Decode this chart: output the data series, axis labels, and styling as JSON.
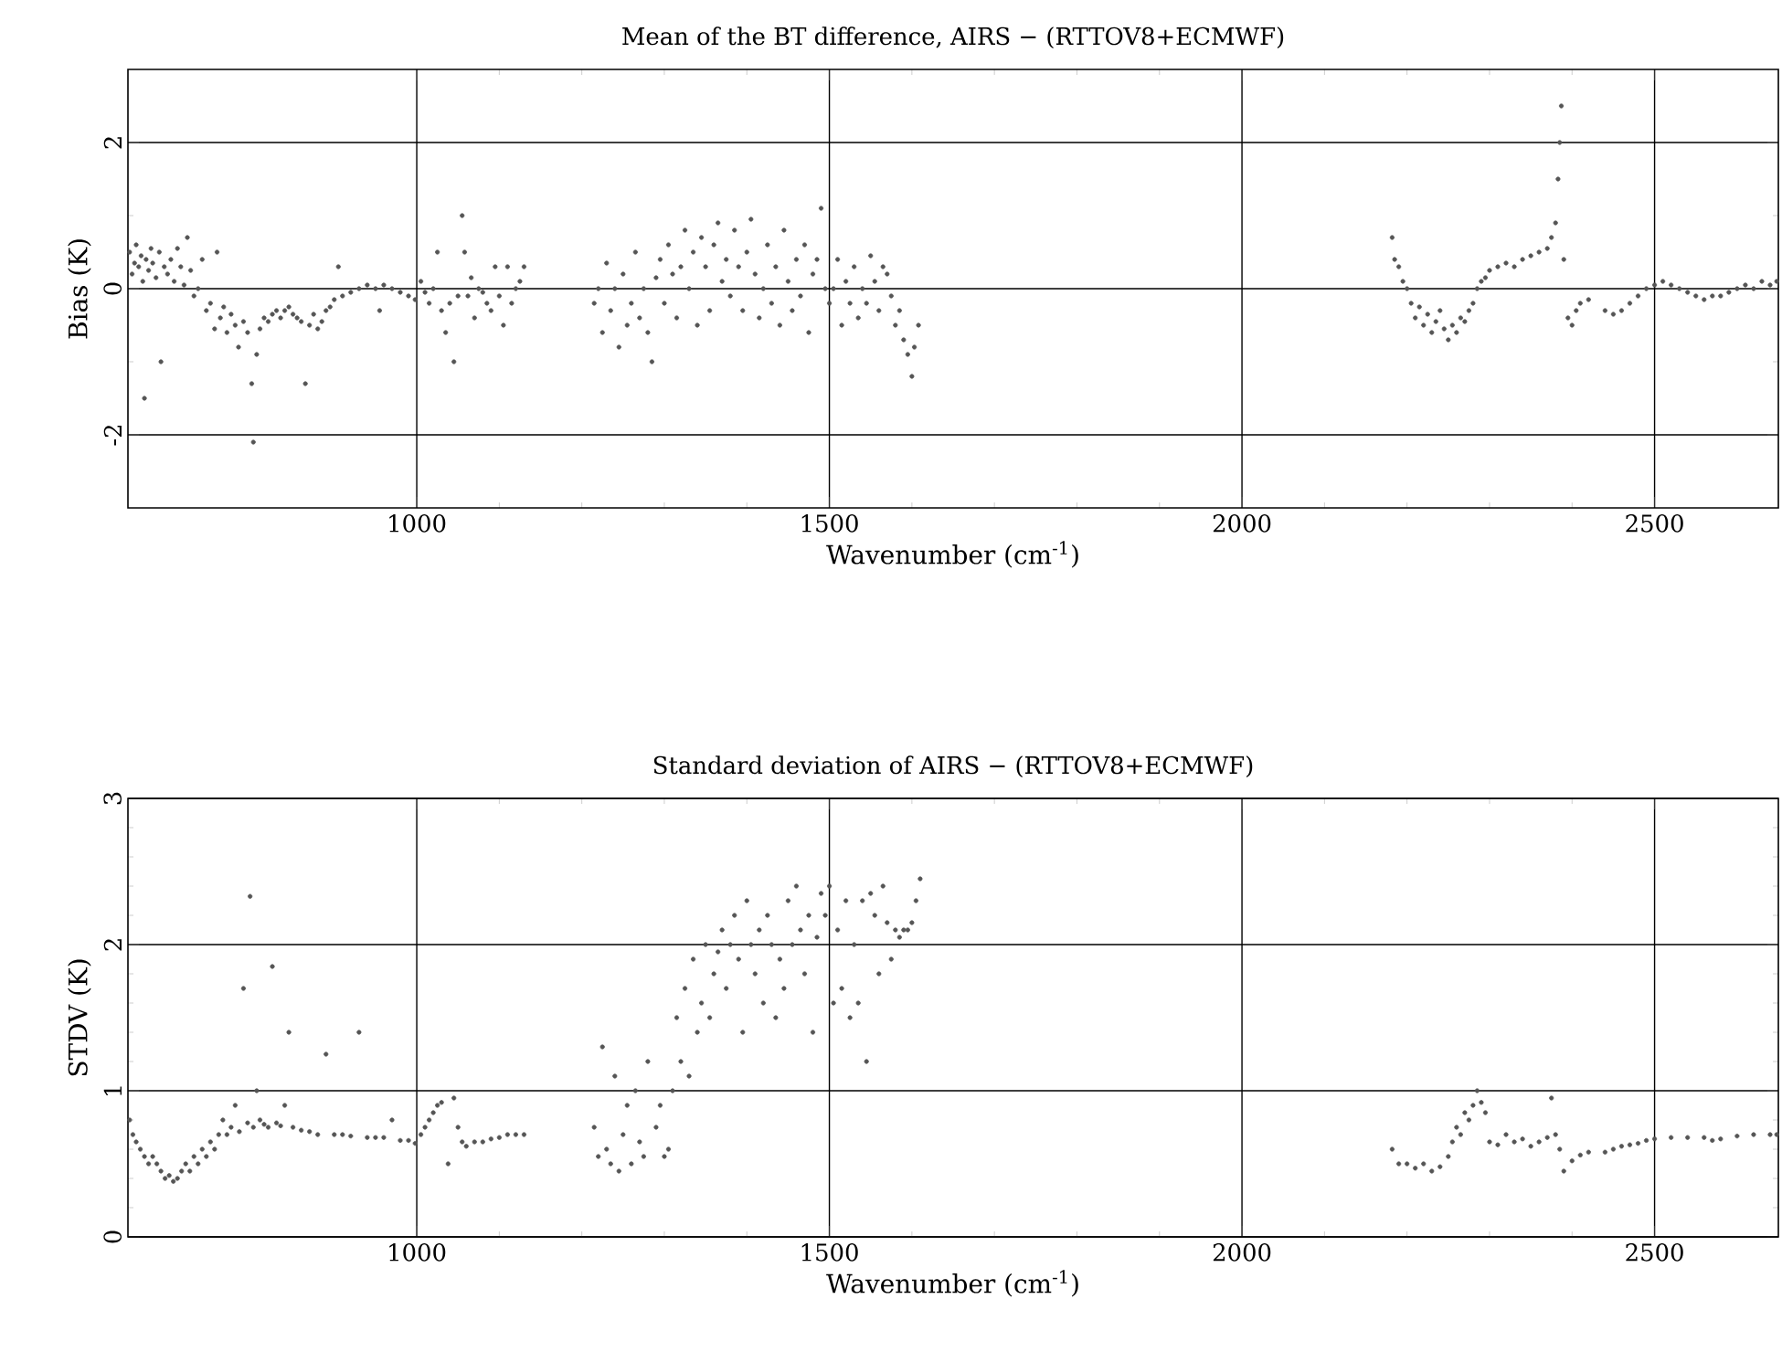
{
  "chart_data": [
    {
      "type": "scatter",
      "title": "Mean of the BT difference, AIRS − (RTTOV8+ECMWF)",
      "xlabel": "Wavenumber (cm$^{-1}$)",
      "ylabel": "Bias (K)",
      "color": "#555555",
      "grid": true,
      "xlim": [
        650,
        2650
      ],
      "ylim": [
        -3,
        3
      ],
      "xticks": [
        1000,
        1500,
        2000,
        2500
      ],
      "yticks": [
        -2,
        0,
        2
      ],
      "x": [
        652,
        655,
        658,
        660,
        663,
        666,
        668,
        670,
        672,
        675,
        678,
        680,
        684,
        688,
        690,
        694,
        698,
        702,
        706,
        710,
        714,
        718,
        722,
        726,
        730,
        735,
        740,
        745,
        750,
        755,
        758,
        762,
        766,
        770,
        775,
        780,
        784,
        790,
        795,
        800,
        802,
        806,
        810,
        815,
        820,
        825,
        830,
        835,
        840,
        845,
        850,
        855,
        860,
        865,
        870,
        875,
        880,
        885,
        890,
        895,
        900,
        905,
        910,
        920,
        930,
        940,
        950,
        955,
        960,
        970,
        980,
        990,
        998,
        1005,
        1010,
        1015,
        1020,
        1025,
        1030,
        1035,
        1040,
        1045,
        1050,
        1055,
        1058,
        1062,
        1066,
        1070,
        1075,
        1080,
        1085,
        1090,
        1095,
        1100,
        1105,
        1110,
        1115,
        1120,
        1125,
        1130,
        1215,
        1220,
        1225,
        1230,
        1235,
        1240,
        1245,
        1250,
        1255,
        1260,
        1265,
        1270,
        1275,
        1280,
        1285,
        1290,
        1295,
        1300,
        1305,
        1310,
        1315,
        1320,
        1325,
        1330,
        1335,
        1340,
        1345,
        1350,
        1355,
        1360,
        1365,
        1370,
        1375,
        1380,
        1385,
        1390,
        1395,
        1400,
        1405,
        1410,
        1415,
        1420,
        1425,
        1430,
        1435,
        1440,
        1445,
        1450,
        1455,
        1460,
        1465,
        1470,
        1475,
        1480,
        1485,
        1490,
        1495,
        1500,
        1505,
        1510,
        1515,
        1520,
        1525,
        1530,
        1535,
        1540,
        1545,
        1550,
        1555,
        1560,
        1565,
        1570,
        1575,
        1580,
        1585,
        1590,
        1595,
        1600,
        1603,
        1608,
        2182,
        2185,
        2190,
        2195,
        2200,
        2205,
        2210,
        2215,
        2220,
        2225,
        2230,
        2235,
        2240,
        2245,
        2250,
        2255,
        2260,
        2265,
        2270,
        2275,
        2280,
        2285,
        2290,
        2295,
        2300,
        2310,
        2320,
        2330,
        2340,
        2350,
        2360,
        2370,
        2375,
        2380,
        2383,
        2385,
        2387,
        2390,
        2395,
        2400,
        2405,
        2410,
        2420,
        2440,
        2450,
        2460,
        2470,
        2480,
        2490,
        2500,
        2510,
        2520,
        2530,
        2540,
        2550,
        2560,
        2570,
        2580,
        2590,
        2600,
        2610,
        2620,
        2630,
        2640,
        2648
      ],
      "values": [
        0.5,
        0.2,
        0.35,
        0.6,
        0.3,
        0.45,
        0.1,
        -1.5,
        0.4,
        0.25,
        0.55,
        0.35,
        0.15,
        0.5,
        -1.0,
        0.3,
        0.2,
        0.4,
        0.1,
        0.55,
        0.3,
        0.05,
        0.7,
        0.25,
        -0.1,
        0.0,
        0.4,
        -0.3,
        -0.2,
        -0.55,
        0.5,
        -0.4,
        -0.25,
        -0.6,
        -0.35,
        -0.5,
        -0.8,
        -0.45,
        -0.6,
        -1.3,
        -2.1,
        -0.9,
        -0.55,
        -0.4,
        -0.45,
        -0.35,
        -0.3,
        -0.4,
        -0.3,
        -0.25,
        -0.35,
        -0.4,
        -0.45,
        -1.3,
        -0.5,
        -0.35,
        -0.55,
        -0.45,
        -0.3,
        -0.25,
        -0.15,
        0.3,
        -0.1,
        -0.05,
        0.0,
        0.05,
        0.0,
        -0.3,
        0.05,
        0.0,
        -0.05,
        -0.1,
        -0.15,
        0.1,
        -0.05,
        -0.2,
        0.0,
        0.5,
        -0.3,
        -0.6,
        -0.2,
        -1.0,
        -0.1,
        1.0,
        0.5,
        -0.1,
        0.15,
        -0.4,
        0.0,
        -0.05,
        -0.2,
        -0.3,
        0.3,
        -0.1,
        -0.5,
        0.3,
        -0.2,
        0.0,
        0.1,
        0.3,
        -0.2,
        0.0,
        -0.6,
        0.35,
        -0.3,
        0.0,
        -0.8,
        0.2,
        -0.5,
        -0.2,
        0.5,
        -0.4,
        0.0,
        -0.6,
        -1.0,
        0.15,
        0.4,
        -0.2,
        0.6,
        0.2,
        -0.4,
        0.3,
        0.8,
        0.0,
        0.5,
        -0.5,
        0.7,
        0.3,
        -0.3,
        0.6,
        0.9,
        0.1,
        0.4,
        -0.1,
        0.8,
        0.3,
        -0.3,
        0.5,
        0.95,
        0.2,
        -0.4,
        0.0,
        0.6,
        -0.2,
        0.3,
        -0.5,
        0.8,
        0.1,
        -0.3,
        0.4,
        -0.1,
        0.6,
        -0.6,
        0.2,
        0.4,
        1.1,
        0.0,
        -0.2,
        0.0,
        0.4,
        -0.5,
        0.1,
        -0.2,
        0.3,
        -0.4,
        0.0,
        -0.2,
        0.45,
        0.1,
        -0.3,
        0.3,
        0.2,
        -0.1,
        -0.5,
        -0.3,
        -0.7,
        -0.9,
        -1.2,
        -0.8,
        -0.5,
        0.7,
        0.4,
        0.3,
        0.1,
        0.0,
        -0.2,
        -0.4,
        -0.25,
        -0.5,
        -0.35,
        -0.6,
        -0.45,
        -0.3,
        -0.55,
        -0.7,
        -0.5,
        -0.6,
        -0.4,
        -0.45,
        -0.3,
        -0.2,
        0.0,
        0.1,
        0.15,
        0.25,
        0.3,
        0.35,
        0.3,
        0.4,
        0.45,
        0.5,
        0.55,
        0.7,
        0.9,
        1.5,
        2.0,
        2.5,
        0.4,
        -0.4,
        -0.5,
        -0.3,
        -0.2,
        -0.15,
        -0.3,
        -0.35,
        -0.3,
        -0.2,
        -0.1,
        0.0,
        0.05,
        0.1,
        0.05,
        0.0,
        -0.05,
        -0.1,
        -0.15,
        -0.1,
        -0.1,
        -0.05,
        0.0,
        0.05,
        0.0,
        0.1,
        0.05,
        0.1
      ]
    },
    {
      "type": "scatter",
      "title": "Standard deviation of AIRS − (RTTOV8+ECMWF)",
      "xlabel": "Wavenumber (cm$^{-1}$)",
      "ylabel": "STDV (K)",
      "color": "#555555",
      "grid": true,
      "xlim": [
        650,
        2650
      ],
      "ylim": [
        0,
        3
      ],
      "xticks": [
        1000,
        1500,
        2000,
        2500
      ],
      "yticks": [
        0,
        1,
        2,
        3
      ],
      "x": [
        652,
        656,
        660,
        665,
        670,
        675,
        680,
        685,
        690,
        695,
        700,
        705,
        710,
        715,
        720,
        725,
        730,
        735,
        740,
        745,
        750,
        755,
        760,
        765,
        770,
        775,
        780,
        785,
        790,
        795,
        798,
        802,
        806,
        810,
        815,
        820,
        825,
        830,
        835,
        840,
        845,
        850,
        860,
        870,
        880,
        890,
        900,
        910,
        920,
        930,
        940,
        950,
        960,
        970,
        980,
        990,
        998,
        1005,
        1010,
        1015,
        1020,
        1025,
        1030,
        1038,
        1045,
        1050,
        1055,
        1060,
        1070,
        1080,
        1090,
        1100,
        1110,
        1120,
        1130,
        1215,
        1220,
        1225,
        1230,
        1235,
        1240,
        1245,
        1250,
        1255,
        1260,
        1265,
        1270,
        1275,
        1280,
        1290,
        1295,
        1300,
        1305,
        1310,
        1315,
        1320,
        1325,
        1330,
        1335,
        1340,
        1345,
        1350,
        1355,
        1360,
        1365,
        1370,
        1375,
        1380,
        1385,
        1390,
        1395,
        1400,
        1405,
        1410,
        1415,
        1420,
        1425,
        1430,
        1435,
        1440,
        1445,
        1450,
        1455,
        1460,
        1465,
        1470,
        1475,
        1480,
        1485,
        1490,
        1495,
        1500,
        1505,
        1510,
        1515,
        1520,
        1525,
        1530,
        1535,
        1540,
        1545,
        1550,
        1555,
        1560,
        1565,
        1570,
        1575,
        1580,
        1585,
        1590,
        1595,
        1600,
        1605,
        1610,
        2182,
        2190,
        2200,
        2210,
        2220,
        2230,
        2240,
        2250,
        2255,
        2260,
        2265,
        2270,
        2275,
        2280,
        2285,
        2290,
        2295,
        2300,
        2310,
        2320,
        2330,
        2340,
        2350,
        2360,
        2370,
        2375,
        2380,
        2385,
        2390,
        2400,
        2410,
        2420,
        2440,
        2450,
        2460,
        2470,
        2480,
        2490,
        2500,
        2520,
        2540,
        2560,
        2570,
        2580,
        2600,
        2620,
        2640,
        2648
      ],
      "values": [
        0.8,
        0.7,
        0.65,
        0.6,
        0.55,
        0.5,
        0.55,
        0.5,
        0.45,
        0.4,
        0.42,
        0.38,
        0.4,
        0.45,
        0.5,
        0.45,
        0.55,
        0.5,
        0.6,
        0.55,
        0.65,
        0.6,
        0.7,
        0.8,
        0.7,
        0.75,
        0.9,
        0.72,
        1.7,
        0.78,
        2.33,
        0.75,
        1.0,
        0.8,
        0.77,
        0.75,
        1.85,
        0.78,
        0.76,
        0.9,
        1.4,
        0.75,
        0.73,
        0.72,
        0.7,
        1.25,
        0.7,
        0.7,
        0.69,
        1.4,
        0.68,
        0.68,
        0.68,
        0.8,
        0.66,
        0.66,
        0.64,
        0.7,
        0.75,
        0.8,
        0.85,
        0.9,
        0.92,
        0.5,
        0.95,
        0.75,
        0.65,
        0.62,
        0.65,
        0.65,
        0.67,
        0.68,
        0.7,
        0.7,
        0.7,
        0.75,
        0.55,
        1.3,
        0.6,
        0.5,
        1.1,
        0.45,
        0.7,
        0.9,
        0.5,
        1.0,
        0.65,
        0.55,
        1.2,
        0.75,
        0.9,
        0.55,
        0.6,
        1.0,
        1.5,
        1.2,
        1.7,
        1.1,
        1.9,
        1.4,
        1.6,
        2.0,
        1.5,
        1.8,
        1.95,
        2.1,
        1.7,
        2.0,
        2.2,
        1.9,
        1.4,
        2.3,
        2.0,
        1.8,
        2.1,
        1.6,
        2.2,
        2.0,
        1.5,
        1.9,
        1.7,
        2.3,
        2.0,
        2.4,
        2.1,
        1.8,
        2.2,
        1.4,
        2.05,
        2.35,
        2.2,
        2.4,
        1.6,
        2.1,
        1.7,
        2.3,
        1.5,
        2.0,
        1.6,
        2.3,
        1.2,
        2.35,
        2.2,
        1.8,
        2.4,
        2.15,
        1.9,
        2.1,
        2.05,
        2.1,
        2.1,
        2.15,
        2.3,
        2.45,
        0.6,
        0.5,
        0.5,
        0.47,
        0.5,
        0.45,
        0.48,
        0.55,
        0.65,
        0.75,
        0.7,
        0.85,
        0.8,
        0.9,
        1.0,
        0.92,
        0.85,
        0.65,
        0.63,
        0.7,
        0.65,
        0.67,
        0.62,
        0.65,
        0.68,
        0.95,
        0.7,
        0.6,
        0.45,
        0.52,
        0.56,
        0.58,
        0.58,
        0.6,
        0.62,
        0.63,
        0.64,
        0.66,
        0.67,
        0.68,
        0.68,
        0.68,
        0.66,
        0.67,
        0.69,
        0.7,
        0.7,
        0.7
      ]
    }
  ]
}
